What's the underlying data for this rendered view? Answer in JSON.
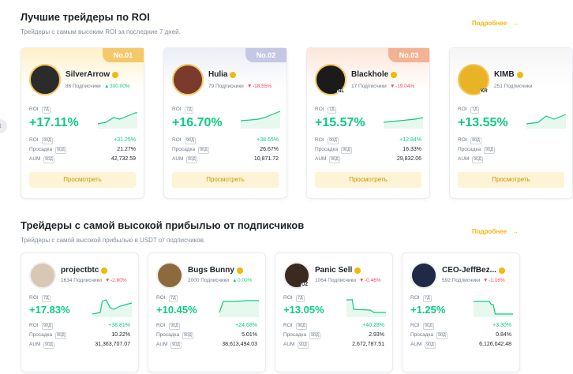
{
  "sections": [
    {
      "title": "Лучшие трейдеры по ROI",
      "subtitle": "Трейдеры с самым высоким ROI за последние 7 дней.",
      "more": "Подробнее",
      "cards": [
        {
          "rank": "No.01",
          "name": "SilverArrow",
          "followers": "86 Подписчики",
          "change": "300.00%",
          "roi_label": "ROI",
          "roi_period": "7Д",
          "roi": "+17.11%",
          "rows": [
            {
              "label": "ROI",
              "period": "90Д",
              "value": "+31.25%"
            },
            {
              "label": "Просадка",
              "period": "90Д",
              "value": "21.27%"
            },
            {
              "label": "AUM",
              "period": "90Д",
              "value": "42,732.59"
            }
          ],
          "button": "Просмотреть"
        },
        {
          "rank": "No.02",
          "name": "Hulia",
          "followers": "79 Подписчики",
          "change": "-18.55%",
          "roi_label": "ROI",
          "roi_period": "7Д",
          "roi": "+16.70%",
          "rows": [
            {
              "label": "ROI",
              "period": "90Д",
              "value": "+38.65%"
            },
            {
              "label": "Просадка",
              "period": "90Д",
              "value": "26.67%"
            },
            {
              "label": "AUM",
              "period": "90Д",
              "value": "10,871.72"
            }
          ],
          "button": "Просмотреть"
        },
        {
          "rank": "No.03",
          "name": "Blackhole",
          "badge": "NL",
          "followers": "17 Подписчики",
          "change": "-19.04%",
          "roi_label": "ROI",
          "roi_period": "7Д",
          "roi": "+15.57%",
          "rows": [
            {
              "label": "ROI",
              "period": "90Д",
              "value": "+12.84%"
            },
            {
              "label": "Просадка",
              "period": "90Д",
              "value": "16.33%"
            },
            {
              "label": "AUM",
              "period": "90Д",
              "value": "29,832.06"
            }
          ],
          "button": "Просмотреть"
        },
        {
          "name": "KIMB",
          "badge": "KR",
          "followers": "251 Подписчики",
          "roi_label": "ROI",
          "roi_period": "7Д",
          "roi": "+13.55%",
          "rows": [
            {
              "label": "ROI",
              "period": "90Д"
            },
            {
              "label": "Просадка",
              "period": "90Д"
            },
            {
              "label": "AUM",
              "period": "90Д"
            }
          ],
          "button": "Просмотреть"
        }
      ]
    },
    {
      "title": "Трейдеры с самой высокой прибылью от подписчиков",
      "subtitle": "Трейдеры с самой высокой прибылью в USDT от подписчиков.",
      "more": "Подробнее",
      "cards": [
        {
          "name": "projectbtc",
          "followers": "1634 Подписчики",
          "change": "-2.80%",
          "roi_label": "ROI",
          "roi_period": "7Д",
          "roi": "+17.83%",
          "rows": [
            {
              "label": "ROI",
              "period": "90Д",
              "value": "+38.81%"
            },
            {
              "label": "Просадка",
              "period": "90Д",
              "value": "10.22%"
            },
            {
              "label": "AUM",
              "period": "90Д",
              "value": "31,363,707.07"
            }
          ]
        },
        {
          "name": "Bugs Bunny",
          "followers": "2000 Подписчики",
          "change": "0.00%",
          "roi_label": "ROI",
          "roi_period": "7Д",
          "roi": "+10.45%",
          "rows": [
            {
              "label": "ROI",
              "period": "90Д",
              "value": "+24.68%"
            },
            {
              "label": "Просадка",
              "period": "90Д",
              "value": "5.01%"
            },
            {
              "label": "AUM",
              "period": "90Д",
              "value": "38,613,494.03"
            }
          ]
        },
        {
          "name": "Panic Sell",
          "badge": "OZ",
          "followers": "1064 Подписчики",
          "change": "-0.46%",
          "roi_label": "ROI",
          "roi_period": "7Д",
          "roi": "+13.05%",
          "rows": [
            {
              "label": "ROI",
              "period": "90Д",
              "value": "+40.28%"
            },
            {
              "label": "Просадка",
              "period": "90Д",
              "value": "2.93%"
            },
            {
              "label": "AUM",
              "period": "90Д",
              "value": "2,672,787.51"
            }
          ]
        },
        {
          "name": "CEO-JeffBez...",
          "followers": "592 Подписчики",
          "change": "-1.16%",
          "roi_label": "ROI",
          "roi_period": "7Д",
          "roi": "+1.25%",
          "rows": [
            {
              "label": "ROI",
              "period": "90Д",
              "value": "+3.30%"
            },
            {
              "label": "Просадка",
              "period": "90Д",
              "value": "0.84%"
            },
            {
              "label": "AUM",
              "period": "90Д",
              "value": "6,126,042.48"
            }
          ]
        }
      ]
    }
  ]
}
